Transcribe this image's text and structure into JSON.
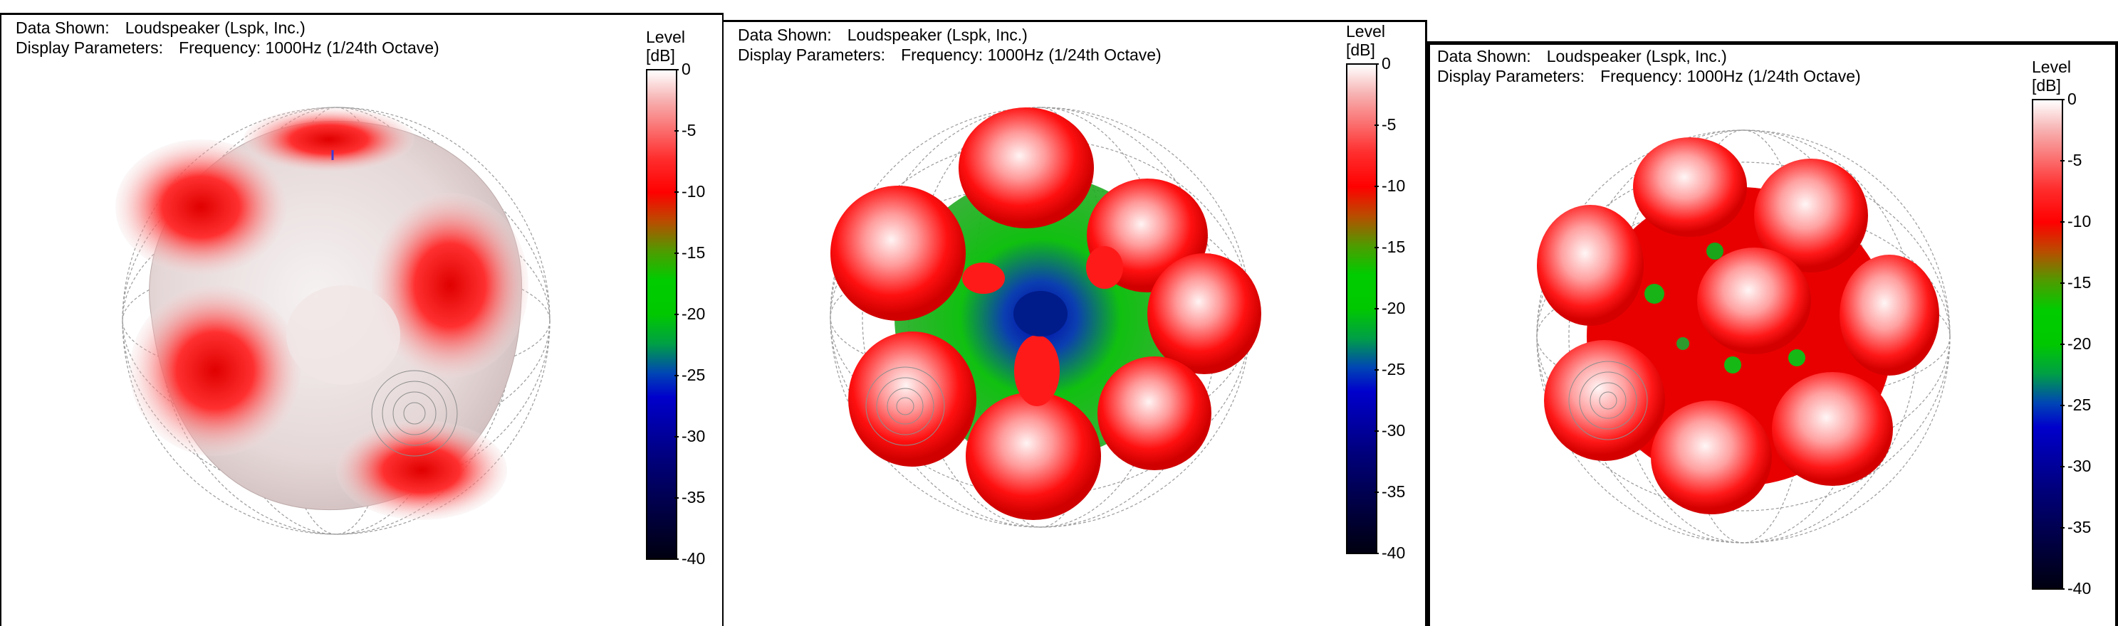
{
  "panels": [
    {
      "data_shown_label": "Data Shown:",
      "data_shown_value": "Loudspeaker (Lspk, Inc.)",
      "display_params_label": "Display Parameters:",
      "display_params_value": "Frequency: 1000Hz (1/24th Octave)",
      "legend": {
        "title_1": "Level",
        "title_2": "[dB]",
        "ticks": [
          "0",
          "-5",
          "-10",
          "-15",
          "-20",
          "-25",
          "-30",
          "-35",
          "-40"
        ]
      }
    },
    {
      "data_shown_label": "Data Shown:",
      "data_shown_value": "Loudspeaker (Lspk, Inc.)",
      "display_params_label": "Display Parameters:",
      "display_params_value": "Frequency: 1000Hz (1/24th Octave)",
      "legend": {
        "title_1": "Level",
        "title_2": "[dB]",
        "ticks": [
          "0",
          "-5",
          "-10",
          "-15",
          "-20",
          "-25",
          "-30",
          "-35",
          "-40"
        ]
      }
    },
    {
      "data_shown_label": "Data Shown:",
      "data_shown_value": "Loudspeaker (Lspk, Inc.)",
      "display_params_label": "Display Parameters:",
      "display_params_value": "Frequency: 1000Hz (1/24th Octave)",
      "legend": {
        "title_1": "Level",
        "title_2": "[dB]",
        "ticks": [
          "0",
          "-5",
          "-10",
          "-15",
          "-20",
          "-25",
          "-30",
          "-35",
          "-40"
        ]
      }
    }
  ],
  "colors": {
    "level_0": "#ffffff",
    "level_minus_10": "#ff0000",
    "level_minus_20": "#00cc00",
    "level_minus_30": "#0000cc",
    "level_minus_40": "#000000",
    "wireframe": "#9a9a9a"
  }
}
